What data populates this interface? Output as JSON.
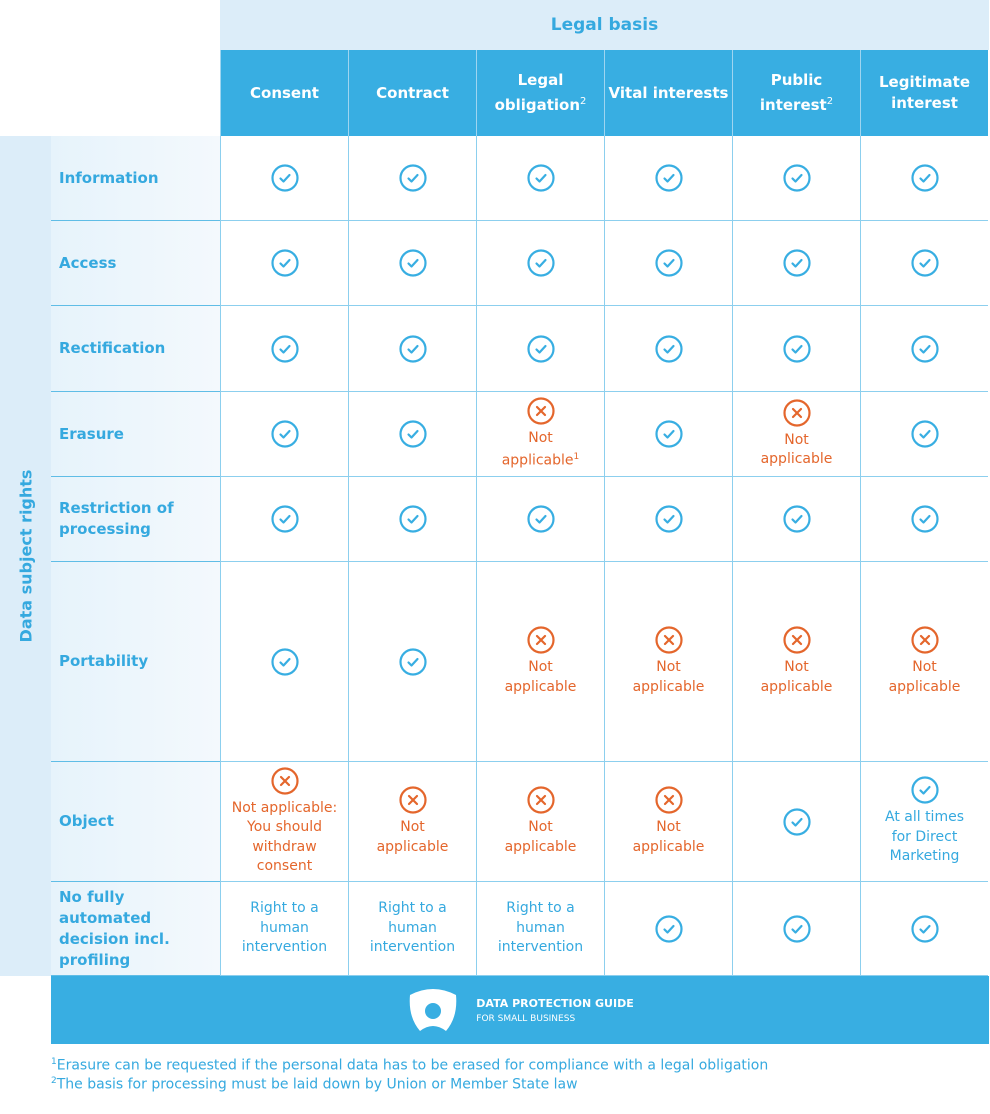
{
  "header": {
    "legal_basis": "Legal basis",
    "side_label": "Data subject rights"
  },
  "columns": [
    {
      "label": "Consent",
      "sup": ""
    },
    {
      "label": "Contract",
      "sup": ""
    },
    {
      "label": "Legal obligation",
      "sup": "2"
    },
    {
      "label": "Vital interests",
      "sup": ""
    },
    {
      "label": "Public interest",
      "sup": "2"
    },
    {
      "label": "Legitimate interest",
      "sup": ""
    }
  ],
  "rows": [
    {
      "label": "Information",
      "cells": [
        {
          "s": "check"
        },
        {
          "s": "check"
        },
        {
          "s": "check"
        },
        {
          "s": "check"
        },
        {
          "s": "check"
        },
        {
          "s": "check"
        }
      ]
    },
    {
      "label": "Access",
      "cells": [
        {
          "s": "check"
        },
        {
          "s": "check"
        },
        {
          "s": "check"
        },
        {
          "s": "check"
        },
        {
          "s": "check"
        },
        {
          "s": "check"
        }
      ]
    },
    {
      "label": "Rectification",
      "cells": [
        {
          "s": "check"
        },
        {
          "s": "check"
        },
        {
          "s": "check"
        },
        {
          "s": "check"
        },
        {
          "s": "check"
        },
        {
          "s": "check"
        }
      ]
    },
    {
      "label": "Erasure",
      "cells": [
        {
          "s": "check"
        },
        {
          "s": "check"
        },
        {
          "s": "cross",
          "note": "Not applicable",
          "sup": "1"
        },
        {
          "s": "check"
        },
        {
          "s": "cross",
          "note": "Not applicable"
        },
        {
          "s": "check"
        }
      ]
    },
    {
      "label": "Restriction of processing",
      "cells": [
        {
          "s": "check"
        },
        {
          "s": "check"
        },
        {
          "s": "check"
        },
        {
          "s": "check"
        },
        {
          "s": "check"
        },
        {
          "s": "check"
        }
      ]
    },
    {
      "label": "Portability",
      "cells": [
        {
          "s": "check"
        },
        {
          "s": "check"
        },
        {
          "s": "cross",
          "note": "Not applicable"
        },
        {
          "s": "cross",
          "note": "Not applicable"
        },
        {
          "s": "cross",
          "note": "Not applicable"
        },
        {
          "s": "cross",
          "note": "Not applicable"
        }
      ]
    },
    {
      "label": "Object",
      "cells": [
        {
          "s": "cross",
          "note": "Not applicable: You should withdraw consent"
        },
        {
          "s": "cross",
          "note": "Not applicable"
        },
        {
          "s": "cross",
          "note": "Not applicable"
        },
        {
          "s": "cross",
          "note": "Not applicable"
        },
        {
          "s": "check"
        },
        {
          "s": "check",
          "note": "At all times for Direct Marketing"
        }
      ]
    },
    {
      "label": "No fully automated decision incl. profiling",
      "cells": [
        {
          "s": "text",
          "note": "Right to a human intervention"
        },
        {
          "s": "text",
          "note": "Right to a human intervention"
        },
        {
          "s": "text",
          "note": "Right to a human intervention"
        },
        {
          "s": "check"
        },
        {
          "s": "check"
        },
        {
          "s": "check"
        }
      ]
    }
  ],
  "footer": {
    "brand_title": "DATA PROTECTION GUIDE",
    "brand_subtitle": "FOR SMALL BUSINESS",
    "icon": "shield-person-icon"
  },
  "footnotes": [
    {
      "mark": "1",
      "text": "Erasure can be requested if the personal data has to be erased for compliance with a legal obligation"
    },
    {
      "mark": "2",
      "text": "The basis for processing must be laid down by Union or Member State law"
    }
  ],
  "colors": {
    "blue": "#38aee2",
    "light": "#dcedf9",
    "text_blue": "#35a9df",
    "orange": "#e4662c"
  }
}
